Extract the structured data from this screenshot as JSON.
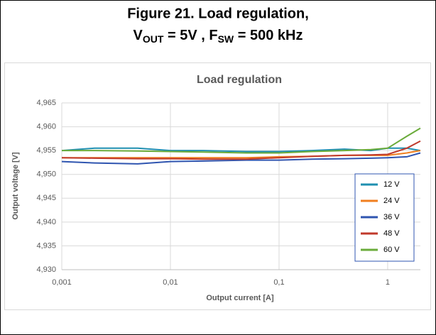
{
  "caption": {
    "line1": "Figure 21. Load regulation,",
    "line2": [
      "V",
      "OUT",
      " = 5V , F",
      "SW",
      " = 500 kHz"
    ]
  },
  "chart_data": {
    "type": "line",
    "title": "Load regulation",
    "x_label": "Output current [A]",
    "y_label": "Output voltage [V]",
    "x": [
      0.001,
      0.002,
      0.005,
      0.01,
      0.02,
      0.05,
      0.1,
      0.2,
      0.4,
      0.7,
      1,
      1.5,
      2
    ],
    "series": [
      {
        "name": "12 V",
        "color": "#1f8fb0",
        "values": [
          4.955,
          4.9555,
          4.9555,
          4.955,
          4.955,
          4.9548,
          4.9548,
          4.955,
          4.9553,
          4.955,
          4.9555,
          4.9555,
          4.955
        ]
      },
      {
        "name": "24 V",
        "color": "#f07f1f",
        "values": [
          4.9535,
          4.9535,
          4.9535,
          4.9535,
          4.9535,
          4.9535,
          4.9537,
          4.9538,
          4.954,
          4.954,
          4.954,
          4.9545,
          4.955
        ]
      },
      {
        "name": "36 V",
        "color": "#2f55b0",
        "values": [
          4.9527,
          4.9524,
          4.9522,
          4.9527,
          4.9528,
          4.953,
          4.953,
          4.9532,
          4.9533,
          4.9534,
          4.9535,
          4.9537,
          4.9545
        ]
      },
      {
        "name": "48 V",
        "color": "#c0392b",
        "values": [
          4.9535,
          4.9534,
          4.9533,
          4.9533,
          4.9532,
          4.9532,
          4.9535,
          4.9538,
          4.954,
          4.9541,
          4.9542,
          4.9555,
          4.957
        ]
      },
      {
        "name": "60 V",
        "color": "#6aab3a",
        "values": [
          4.955,
          4.955,
          4.9549,
          4.9548,
          4.9547,
          4.9545,
          4.9545,
          4.9548,
          4.955,
          4.9552,
          4.9555,
          4.958,
          4.9597
        ]
      }
    ],
    "xscale": "log",
    "xlim": [
      0.001,
      2
    ],
    "xticks": [
      {
        "value": 0.001,
        "label": "0,001"
      },
      {
        "value": 0.01,
        "label": "0,01"
      },
      {
        "value": 0.1,
        "label": "0,1"
      },
      1
    ],
    "ylim": [
      4.93,
      4.965
    ],
    "yticks": [
      {
        "value": 4.93,
        "label": "4,930"
      },
      {
        "value": 4.935,
        "label": "4,935"
      },
      {
        "value": 4.94,
        "label": "4,940"
      },
      {
        "value": 4.945,
        "label": "4,945"
      },
      {
        "value": 4.95,
        "label": "4,950"
      },
      {
        "value": 4.955,
        "label": "4,955"
      },
      {
        "value": 4.96,
        "label": "4,960"
      },
      {
        "value": 4.965,
        "label": "4,965"
      }
    ],
    "grid": true,
    "legend": "right"
  }
}
